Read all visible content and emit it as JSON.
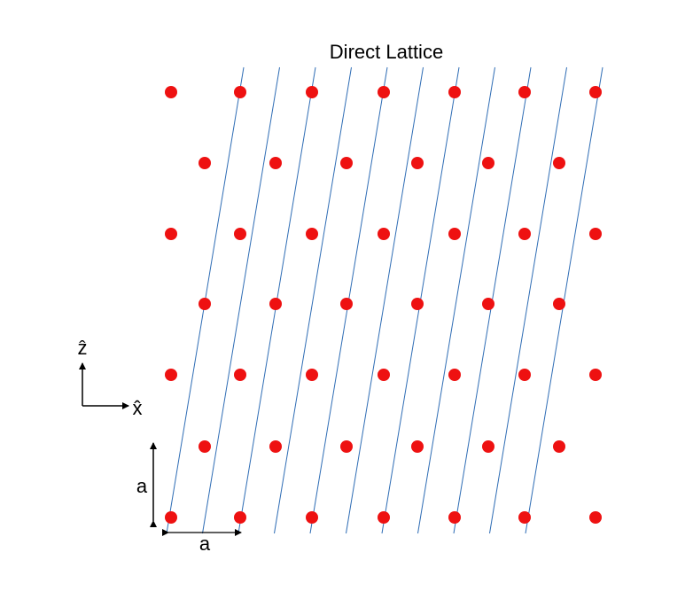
{
  "title": "Direct Lattice",
  "axes": {
    "z_label": "ẑ",
    "x_label": "x̂"
  },
  "dimensions": {
    "vertical": "a",
    "horizontal": "a"
  }
}
